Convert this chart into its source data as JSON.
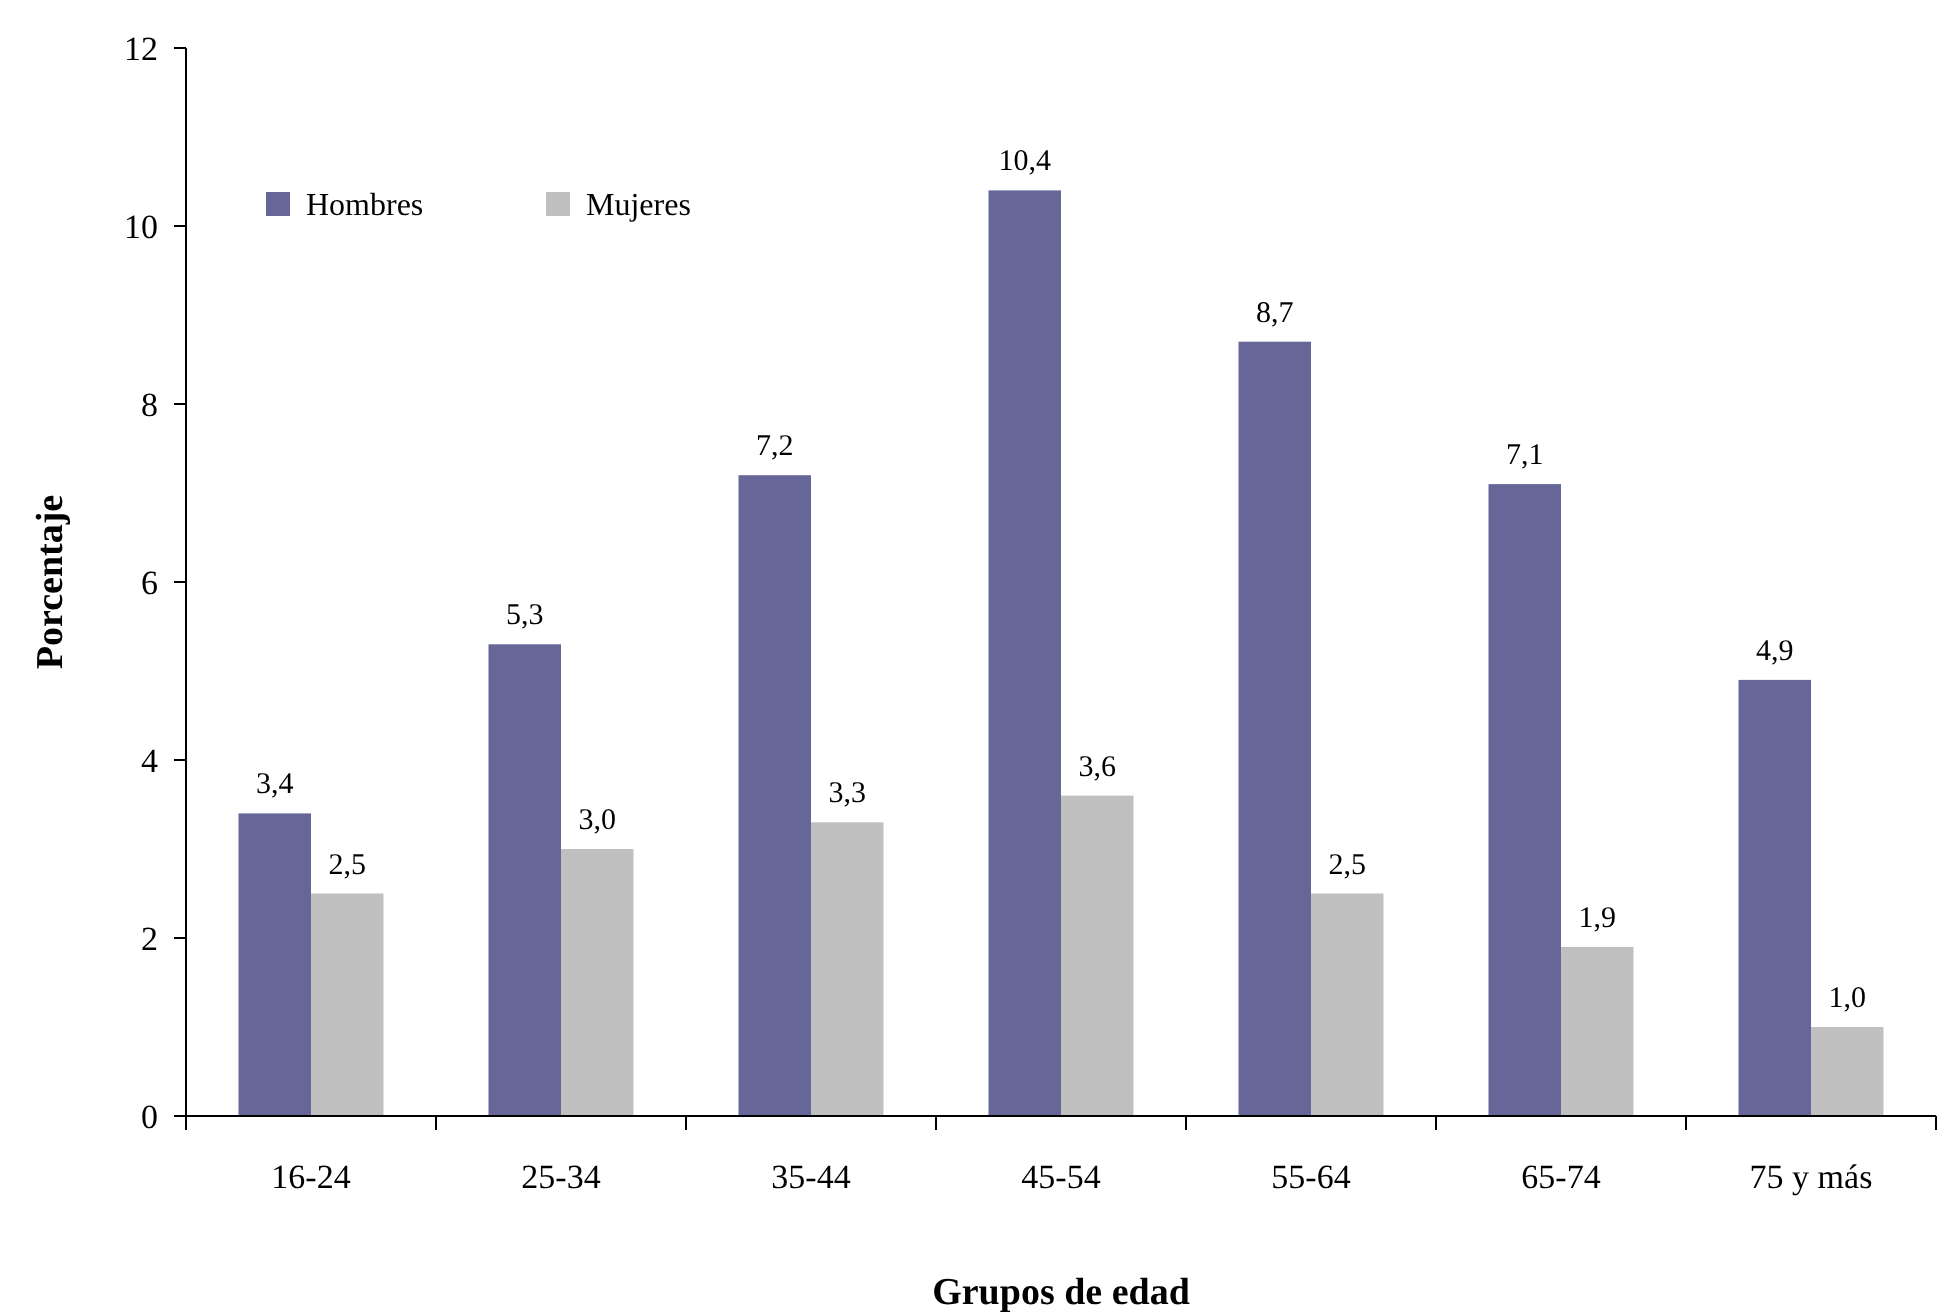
{
  "chart_data": {
    "type": "bar",
    "xlabel": "Grupos  de edad",
    "ylabel": "Porcentaje",
    "categories": [
      "16-24",
      "25-34",
      "35-44",
      "45-54",
      "55-64",
      "65-74",
      "75 y más"
    ],
    "series": [
      {
        "name": "Hombres",
        "color": "#666699",
        "values": [
          3.4,
          5.3,
          7.2,
          10.4,
          8.7,
          7.1,
          4.9
        ],
        "value_labels": [
          "3,4",
          "5,3",
          "7,2",
          "10,4",
          "8,7",
          "7,1",
          "4,9"
        ]
      },
      {
        "name": "Mujeres",
        "color": "#c0c0c0",
        "values": [
          2.5,
          3.0,
          3.3,
          3.6,
          2.5,
          1.9,
          1.0
        ],
        "value_labels": [
          "2,5",
          "3,0",
          "3,3",
          "3,6",
          "2,5",
          "1,9",
          "1,0"
        ]
      }
    ],
    "ylim": [
      0,
      12
    ],
    "yticks": [
      0,
      2,
      4,
      6,
      8,
      10,
      12
    ],
    "grid": false,
    "legend": "top left"
  }
}
